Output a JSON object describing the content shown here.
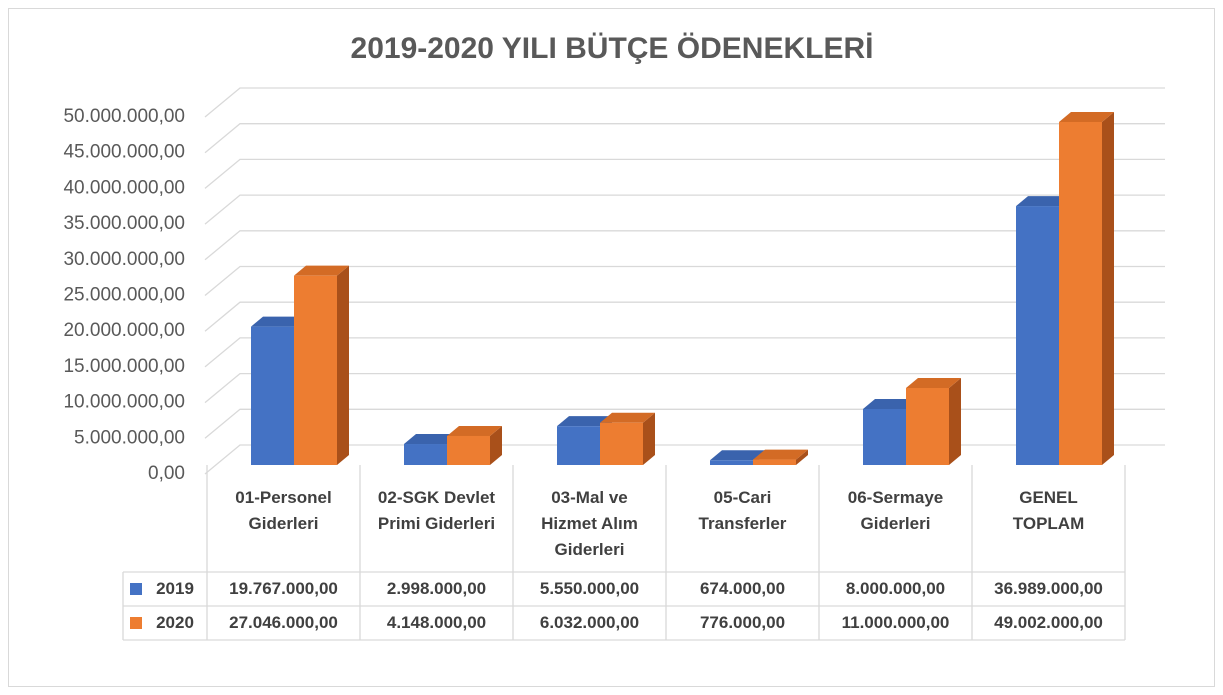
{
  "chart_data": {
    "type": "bar3d",
    "title": "2019-2020 YILI BÜTÇE ÖDENEKLERİ",
    "categories": [
      "01-Personel Giderleri",
      "02-SGK Devlet Primi Giderleri",
      "03-Mal ve Hizmet Alım Giderleri",
      "05-Cari Transferler",
      "06-Sermaye Giderleri",
      "GENEL TOPLAM"
    ],
    "series": [
      {
        "name": "2019",
        "color": "#4472c4",
        "side": "#2f5597",
        "top": "#3a63ad",
        "values": [
          19767000,
          2998000,
          5550000,
          674000,
          8000000,
          36989000
        ],
        "value_labels": [
          "19.767.000,00",
          "2.998.000,00",
          "5.550.000,00",
          "674.000,00",
          "8.000.000,00",
          "36.989.000,00"
        ]
      },
      {
        "name": "2020",
        "color": "#ed7d31",
        "side": "#a9501a",
        "top": "#d36b25",
        "values": [
          27046000,
          4148000,
          6032000,
          776000,
          11000000,
          49002000
        ],
        "value_labels": [
          "27.046.000,00",
          "4.148.000,00",
          "6.032.000,00",
          "776.000,00",
          "11.000.000,00",
          "49.002.000,00"
        ]
      }
    ],
    "ylim": [
      0,
      50000000
    ],
    "yticks": [
      {
        "value": 0,
        "label": "0,00"
      },
      {
        "value": 5000000,
        "label": "5.000.000,00"
      },
      {
        "value": 10000000,
        "label": "10.000.000,00"
      },
      {
        "value": 15000000,
        "label": "15.000.000,00"
      },
      {
        "value": 20000000,
        "label": "20.000.000,00"
      },
      {
        "value": 25000000,
        "label": "25.000.000,00"
      },
      {
        "value": 30000000,
        "label": "30.000.000,00"
      },
      {
        "value": 35000000,
        "label": "35.000.000,00"
      },
      {
        "value": 40000000,
        "label": "40.000.000,00"
      },
      {
        "value": 45000000,
        "label": "45.000.000,00"
      },
      {
        "value": 50000000,
        "label": "50.000.000,00"
      }
    ],
    "grid": true
  }
}
